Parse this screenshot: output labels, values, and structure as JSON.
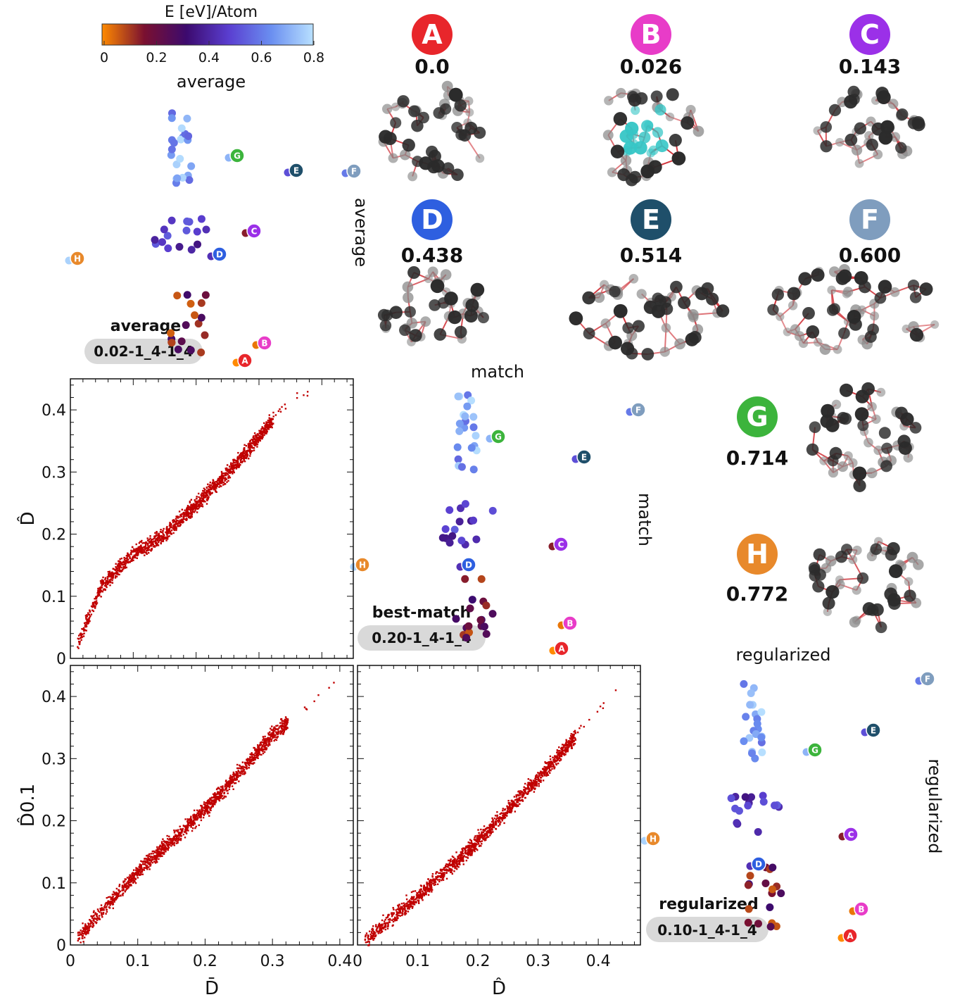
{
  "colorbar": {
    "title": "E [eV]/Atom",
    "ticks": [
      "0",
      "0.2",
      "0.4",
      "0.6",
      "0.8"
    ],
    "range": [
      0,
      0.8
    ],
    "stops": [
      "#ff8a00",
      "#7a1030",
      "#3c0a6e",
      "#5a3ed0",
      "#6a8ef0",
      "#b8e0ff"
    ]
  },
  "structures": [
    {
      "letter": "A",
      "energy": "0.0",
      "color": "#e8262b"
    },
    {
      "letter": "B",
      "energy": "0.026",
      "color": "#e83cc8"
    },
    {
      "letter": "C",
      "energy": "0.143",
      "color": "#9b30e8"
    },
    {
      "letter": "D",
      "energy": "0.438",
      "color": "#2e5fe0"
    },
    {
      "letter": "E",
      "energy": "0.514",
      "color": "#1f4f6a"
    },
    {
      "letter": "F",
      "energy": "0.600",
      "color": "#7f9dbe"
    },
    {
      "letter": "G",
      "energy": "0.714",
      "color": "#3cb43c"
    },
    {
      "letter": "H",
      "energy": "0.772",
      "color": "#e8892b"
    }
  ],
  "maps": [
    {
      "title": "average",
      "side_label": "average",
      "kernel": "average",
      "params": "0.02-1_4-1_4"
    },
    {
      "title": "match",
      "side_label": "match",
      "kernel": "best-match",
      "params": "0.20-1_4-1_4"
    },
    {
      "title": "regularized",
      "side_label": "regularized",
      "kernel": "regularized",
      "params": "0.10-1_4-1_4"
    }
  ],
  "chart_data": [
    {
      "type": "scatter",
      "panel": "top-left",
      "xlabel": "",
      "ylabel": "D̂",
      "xlim": [
        0,
        0.45
      ],
      "ylim": [
        0,
        0.45
      ],
      "yticks": [
        "0",
        "0.1",
        "0.2",
        "0.3",
        "0.4"
      ],
      "series": [
        {
          "color": "#c00000",
          "band": [
            [
              0.0,
              0.0
            ],
            [
              0.05,
              0.12
            ],
            [
              0.1,
              0.17
            ],
            [
              0.15,
              0.2
            ],
            [
              0.2,
              0.25
            ],
            [
              0.25,
              0.3
            ],
            [
              0.3,
              0.36
            ],
            [
              0.35,
              0.42
            ],
            [
              0.4,
              0.44
            ]
          ]
        }
      ]
    },
    {
      "type": "scatter",
      "panel": "bottom-left",
      "xlabel": "D̄",
      "ylabel": "D̂0.1",
      "xlim": [
        0,
        0.42
      ],
      "ylim": [
        0,
        0.45
      ],
      "xticks": [
        "0",
        "0.1",
        "0.2",
        "0.3",
        "0.4"
      ],
      "yticks": [
        "0",
        "0.1",
        "0.2",
        "0.3",
        "0.4"
      ],
      "series": [
        {
          "color": "#c00000",
          "band": [
            [
              0.0,
              0.0
            ],
            [
              0.1,
              0.12
            ],
            [
              0.2,
              0.22
            ],
            [
              0.3,
              0.34
            ],
            [
              0.4,
              0.43
            ]
          ]
        }
      ]
    },
    {
      "type": "scatter",
      "panel": "bottom-middle",
      "xlabel": "D̂",
      "ylabel": "",
      "xlim": [
        0,
        0.47
      ],
      "ylim": [
        0,
        0.45
      ],
      "xticks": [
        "0",
        "0.1",
        "0.2",
        "0.3",
        "0.4"
      ],
      "series": [
        {
          "color": "#c00000",
          "band": [
            [
              0.0,
              0.0
            ],
            [
              0.1,
              0.08
            ],
            [
              0.2,
              0.17
            ],
            [
              0.3,
              0.27
            ],
            [
              0.4,
              0.38
            ],
            [
              0.45,
              0.43
            ]
          ]
        }
      ]
    }
  ]
}
